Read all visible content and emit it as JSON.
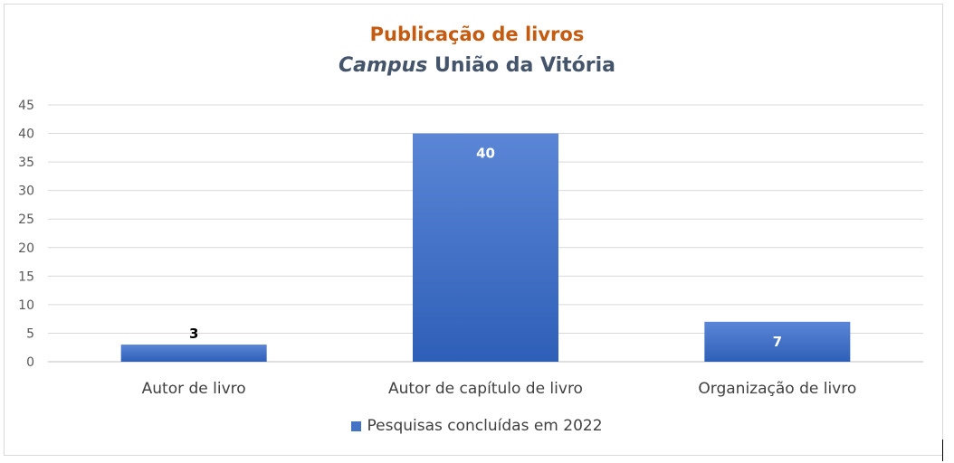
{
  "title": {
    "line1": "Publicação de livros",
    "line2_italic": "Campus",
    "line2_rest": " União da Vitória"
  },
  "chart_data": {
    "type": "bar",
    "categories": [
      "Autor de livro",
      "Autor de capítulo de livro",
      "Organização de livro"
    ],
    "series": [
      {
        "name": "Pesquisas concluídas em 2022",
        "values": [
          3,
          40,
          7
        ]
      }
    ],
    "data_labels": [
      "3",
      "40",
      "7"
    ],
    "ylim": [
      0,
      45
    ],
    "yticks": [
      0,
      5,
      10,
      15,
      20,
      25,
      30,
      35,
      40,
      45
    ],
    "grid": true,
    "legend_position": "bottom",
    "colors": {
      "bar_top": "#5b86d6",
      "bar_bottom": "#2e5fb8",
      "title": "#c55a11",
      "subtitle": "#44546a"
    }
  },
  "legend": {
    "label": "Pesquisas concluídas em 2022"
  }
}
